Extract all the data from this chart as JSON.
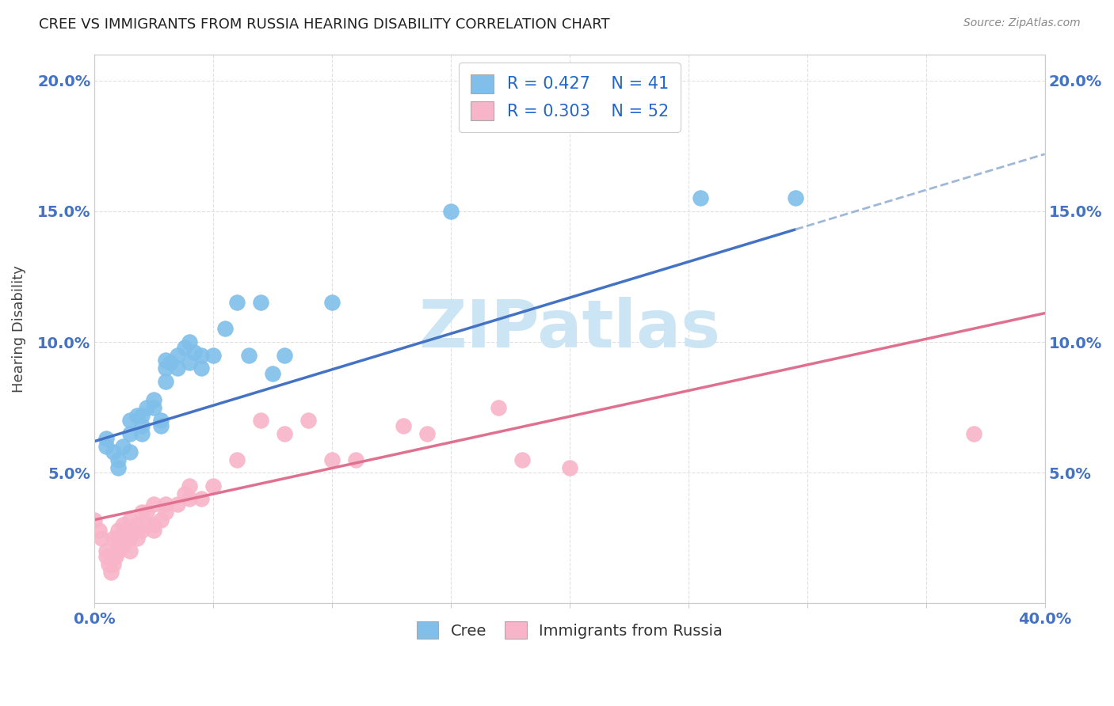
{
  "title": "CREE VS IMMIGRANTS FROM RUSSIA HEARING DISABILITY CORRELATION CHART",
  "source": "Source: ZipAtlas.com",
  "ylabel": "Hearing Disability",
  "xlim": [
    0.0,
    0.4
  ],
  "ylim": [
    0.0,
    0.21
  ],
  "x_ticks": [
    0.0,
    0.05,
    0.1,
    0.15,
    0.2,
    0.25,
    0.3,
    0.35,
    0.4
  ],
  "y_ticks": [
    0.0,
    0.05,
    0.1,
    0.15,
    0.2
  ],
  "y_tick_labels": [
    "",
    "5.0%",
    "10.0%",
    "15.0%",
    "20.0%"
  ],
  "legend": {
    "cree_R": "0.427",
    "cree_N": "41",
    "russia_R": "0.303",
    "russia_N": "52"
  },
  "cree_color": "#7fbfea",
  "russia_color": "#f8b4c8",
  "cree_line_color": "#4472c4",
  "russia_line_color": "#e07090",
  "cree_dash_color": "#a0b8d8",
  "cree_scatter_x": [
    0.005,
    0.005,
    0.008,
    0.01,
    0.01,
    0.012,
    0.015,
    0.015,
    0.015,
    0.018,
    0.02,
    0.02,
    0.02,
    0.022,
    0.025,
    0.025,
    0.028,
    0.028,
    0.03,
    0.03,
    0.03,
    0.032,
    0.035,
    0.035,
    0.038,
    0.04,
    0.04,
    0.042,
    0.045,
    0.045,
    0.05,
    0.055,
    0.06,
    0.065,
    0.07,
    0.075,
    0.08,
    0.1,
    0.15,
    0.255,
    0.295
  ],
  "cree_scatter_y": [
    0.063,
    0.06,
    0.058,
    0.055,
    0.052,
    0.06,
    0.058,
    0.065,
    0.07,
    0.072,
    0.065,
    0.072,
    0.068,
    0.075,
    0.078,
    0.075,
    0.07,
    0.068,
    0.09,
    0.093,
    0.085,
    0.092,
    0.095,
    0.09,
    0.098,
    0.092,
    0.1,
    0.096,
    0.09,
    0.095,
    0.095,
    0.105,
    0.115,
    0.095,
    0.115,
    0.088,
    0.095,
    0.115,
    0.15,
    0.155,
    0.155
  ],
  "russia_scatter_x": [
    0.0,
    0.002,
    0.003,
    0.005,
    0.005,
    0.006,
    0.007,
    0.008,
    0.008,
    0.009,
    0.01,
    0.01,
    0.01,
    0.01,
    0.012,
    0.012,
    0.013,
    0.014,
    0.015,
    0.015,
    0.015,
    0.016,
    0.018,
    0.018,
    0.02,
    0.02,
    0.022,
    0.022,
    0.025,
    0.025,
    0.025,
    0.028,
    0.03,
    0.03,
    0.035,
    0.038,
    0.04,
    0.04,
    0.045,
    0.05,
    0.06,
    0.07,
    0.08,
    0.09,
    0.1,
    0.11,
    0.13,
    0.14,
    0.17,
    0.18,
    0.2,
    0.37
  ],
  "russia_scatter_y": [
    0.032,
    0.028,
    0.025,
    0.02,
    0.018,
    0.015,
    0.012,
    0.015,
    0.025,
    0.018,
    0.02,
    0.025,
    0.022,
    0.028,
    0.022,
    0.03,
    0.025,
    0.028,
    0.02,
    0.025,
    0.032,
    0.028,
    0.025,
    0.03,
    0.028,
    0.035,
    0.03,
    0.035,
    0.028,
    0.03,
    0.038,
    0.032,
    0.035,
    0.038,
    0.038,
    0.042,
    0.04,
    0.045,
    0.04,
    0.045,
    0.055,
    0.07,
    0.065,
    0.07,
    0.055,
    0.055,
    0.068,
    0.065,
    0.075,
    0.055,
    0.052,
    0.065
  ],
  "background_color": "#ffffff",
  "grid_color": "#e0e0e0",
  "watermark_text": "ZIPatlas",
  "watermark_color": "#cce5f5",
  "watermark_fontsize": 60,
  "cree_line_x0": 0.0,
  "cree_line_y0": 0.062,
  "cree_line_x1": 0.295,
  "cree_line_y1": 0.143,
  "russia_line_x0": 0.0,
  "russia_line_y0": 0.032,
  "russia_line_x1": 0.4,
  "russia_line_y1": 0.111
}
